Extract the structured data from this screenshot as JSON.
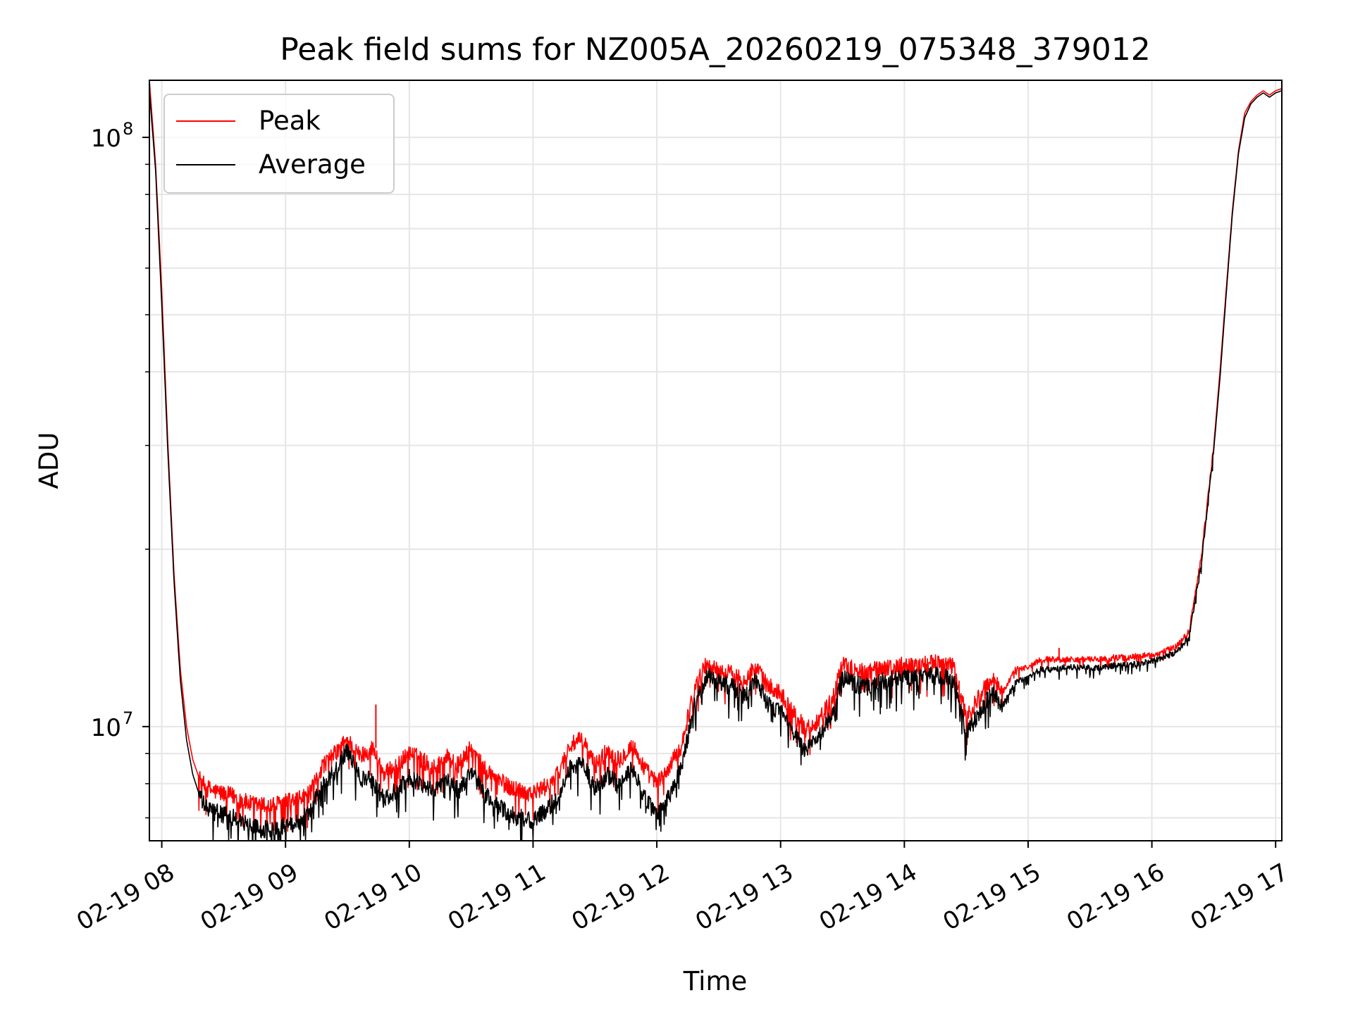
{
  "chart_data": {
    "type": "line",
    "title": "Peak field sums for NZ005A_20260219_075348_379012",
    "xlabel": "Time",
    "ylabel": "ADU",
    "yscale": "log",
    "xlim": [
      7.9,
      17.05
    ],
    "ylim": [
      6400000,
      125000000
    ],
    "grid": true,
    "legend_position": "top-left",
    "x_ticks": [
      {
        "value": 8,
        "label": "02-19 08"
      },
      {
        "value": 9,
        "label": "02-19 09"
      },
      {
        "value": 10,
        "label": "02-19 10"
      },
      {
        "value": 11,
        "label": "02-19 11"
      },
      {
        "value": 12,
        "label": "02-19 12"
      },
      {
        "value": 13,
        "label": "02-19 13"
      },
      {
        "value": 14,
        "label": "02-19 14"
      },
      {
        "value": 15,
        "label": "02-19 15"
      },
      {
        "value": 16,
        "label": "02-19 16"
      },
      {
        "value": 17,
        "label": "02-19 17"
      }
    ],
    "y_ticks": [
      {
        "value": 10000000,
        "base": "10",
        "exp": "7"
      },
      {
        "value": 100000000,
        "base": "10",
        "exp": "8"
      }
    ],
    "x": [
      7.9,
      7.95,
      8.0,
      8.05,
      8.1,
      8.15,
      8.2,
      8.25,
      8.3,
      8.35,
      8.4,
      8.5,
      8.6,
      8.7,
      8.8,
      8.9,
      9.0,
      9.1,
      9.2,
      9.3,
      9.4,
      9.5,
      9.6,
      9.7,
      9.8,
      9.9,
      10.0,
      10.1,
      10.2,
      10.3,
      10.4,
      10.5,
      10.6,
      10.7,
      10.8,
      10.9,
      11.0,
      11.1,
      11.2,
      11.3,
      11.4,
      11.5,
      11.6,
      11.7,
      11.8,
      11.9,
      12.0,
      12.1,
      12.2,
      12.3,
      12.4,
      12.5,
      12.6,
      12.7,
      12.8,
      12.9,
      13.0,
      13.1,
      13.2,
      13.3,
      13.4,
      13.5,
      13.6,
      13.7,
      13.8,
      13.9,
      14.0,
      14.1,
      14.2,
      14.3,
      14.4,
      14.5,
      14.6,
      14.7,
      14.8,
      14.9,
      15.0,
      15.1,
      15.2,
      15.3,
      15.4,
      15.5,
      15.6,
      15.7,
      15.8,
      15.9,
      16.0,
      16.1,
      16.2,
      16.3,
      16.4,
      16.5,
      16.55,
      16.6,
      16.65,
      16.7,
      16.75,
      16.8,
      16.85,
      16.9,
      16.95,
      17.0,
      17.05
    ],
    "series": [
      {
        "name": "Peak",
        "color": "#ff0000",
        "values": [
          125000000,
          90000000,
          55000000,
          30000000,
          18000000,
          12500000,
          10000000,
          8800000,
          8200000,
          7900000,
          7800000,
          7700000,
          7600000,
          7400000,
          7350000,
          7350000,
          7450000,
          7500000,
          7700000,
          8600000,
          9000000,
          9500000,
          8900000,
          9200000,
          8300000,
          8600000,
          9000000,
          8800000,
          8500000,
          8900000,
          8600000,
          9200000,
          8500000,
          8200000,
          7900000,
          7800000,
          7700000,
          7900000,
          8300000,
          9300000,
          9500000,
          8600000,
          9100000,
          8800000,
          9300000,
          8500000,
          8000000,
          8500000,
          9300000,
          11500000,
          12800000,
          12400000,
          12300000,
          12000000,
          12600000,
          11700000,
          11400000,
          10600000,
          9900000,
          10200000,
          11000000,
          12700000,
          12500000,
          12400000,
          12600000,
          12600000,
          12700000,
          12700000,
          12800000,
          12800000,
          12600000,
          10400000,
          11200000,
          12000000,
          11500000,
          12500000,
          12600000,
          13000000,
          13000000,
          13000000,
          13000000,
          13000000,
          13000000,
          13100000,
          13100000,
          13200000,
          13200000,
          13400000,
          13700000,
          14500000,
          19500000,
          30000000,
          40000000,
          55000000,
          75000000,
          95000000,
          110000000,
          115000000,
          118000000,
          120000000,
          118000000,
          120000000,
          121000000
        ]
      },
      {
        "name": "Average",
        "color": "#000000",
        "values": [
          120000000,
          88000000,
          52000000,
          29000000,
          17500000,
          12000000,
          9500000,
          8300000,
          7700000,
          7300000,
          7200000,
          7100000,
          7000000,
          6800000,
          6700000,
          6700000,
          6800000,
          6900000,
          7200000,
          8000000,
          8400000,
          9100000,
          8200000,
          8100000,
          7500000,
          7800000,
          8200000,
          8000000,
          7800000,
          8100000,
          7800000,
          8400000,
          7700000,
          7400000,
          7100000,
          7000000,
          6900000,
          7200000,
          7600000,
          8500000,
          8700000,
          7800000,
          8300000,
          7900000,
          8500000,
          7600000,
          7100000,
          7600000,
          8500000,
          10800000,
          12200000,
          11900000,
          11700000,
          11300000,
          12000000,
          10900000,
          10600000,
          9800000,
          9100000,
          9500000,
          10300000,
          12100000,
          11800000,
          11700000,
          11900000,
          12000000,
          12100000,
          12100000,
          12200000,
          12200000,
          12000000,
          9700000,
          10500000,
          11400000,
          10900000,
          11900000,
          12100000,
          12500000,
          12500000,
          12600000,
          12600000,
          12600000,
          12600000,
          12700000,
          12700000,
          12800000,
          12900000,
          13100000,
          13400000,
          14200000,
          19000000,
          29500000,
          39000000,
          54000000,
          74000000,
          94000000,
          108000000,
          114000000,
          117000000,
          119000000,
          117000000,
          119000000,
          120000000
        ]
      }
    ]
  }
}
